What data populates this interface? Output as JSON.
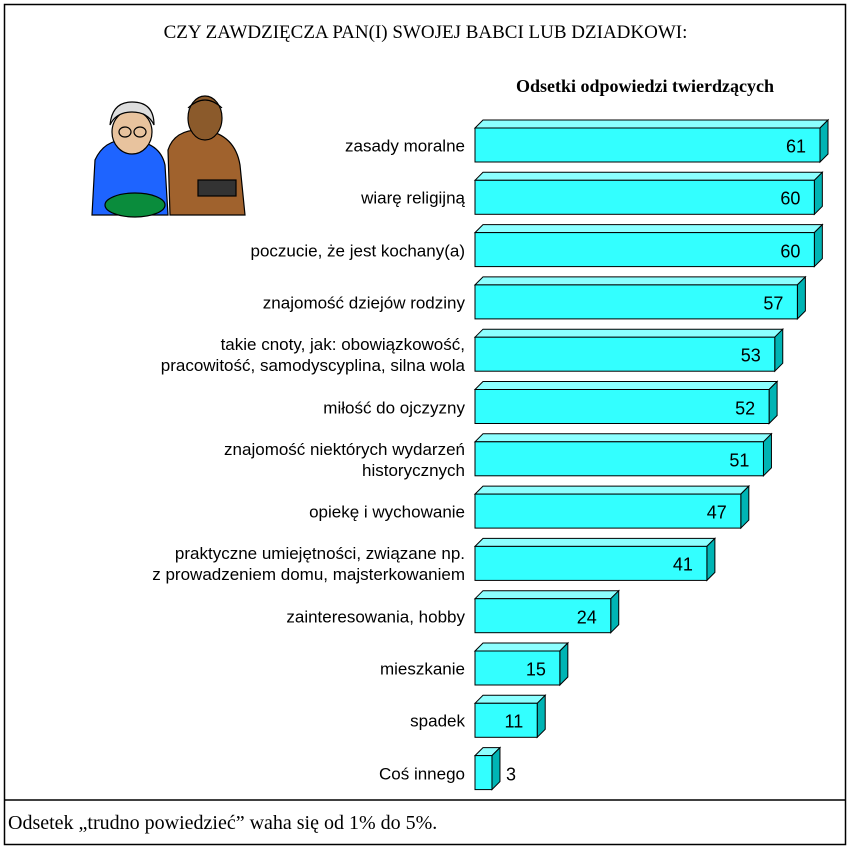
{
  "chart_data": {
    "type": "bar",
    "orientation": "horizontal",
    "title": "CZY ZAWDZIĘCZA PAN(I) SWOJEJ BABCI LUB DZIADKOWI:",
    "subtitle": "Odsetki odpowiedzi twierdzących",
    "categories": [
      "zasady moralne",
      "wiarę religijną",
      "poczucie, że jest kochany(a)",
      "znajomość dziejów rodziny",
      "takie cnoty, jak: obowiązkowość,\npracowitość, samodyscyplina, silna wola",
      "miłość do ojczyzny",
      "znajomość niektórych wydarzeń\nhistorycznych",
      "opiekę i wychowanie",
      "praktyczne umiejętności, związane np.\nz prowadzeniem domu, majsterkowaniem",
      "zainteresowania, hobby",
      "mieszkanie",
      "spadek",
      "Coś innego"
    ],
    "values": [
      61,
      60,
      60,
      57,
      53,
      52,
      51,
      47,
      41,
      24,
      15,
      11,
      3
    ],
    "color": "#33ffff",
    "footer": "Odsetek „trudno powiedzieć” waha się od 1% do 5%."
  }
}
